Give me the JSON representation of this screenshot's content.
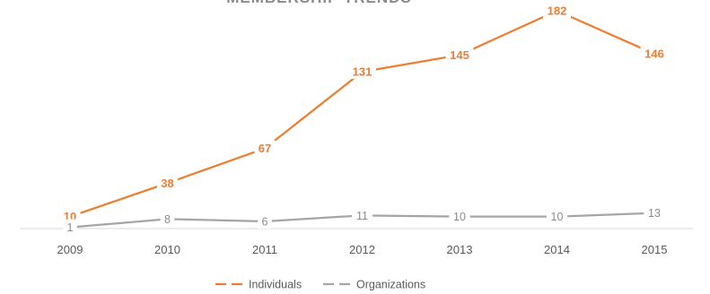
{
  "chart_data": {
    "type": "line",
    "title": "MEMBERSHIP TRENDS",
    "categories": [
      "2009",
      "2010",
      "2011",
      "2012",
      "2013",
      "2014",
      "2015"
    ],
    "series": [
      {
        "name": "Individuals",
        "color": "#ED7D31",
        "values": [
          10,
          38,
          67,
          131,
          145,
          182,
          146
        ]
      },
      {
        "name": "Organizations",
        "color": "#A5A5A5",
        "values": [
          1,
          8,
          6,
          11,
          10,
          10,
          13
        ]
      }
    ],
    "ylim": [
      0,
      182
    ],
    "grid": false,
    "legend": "bottom",
    "data_labels": true
  }
}
